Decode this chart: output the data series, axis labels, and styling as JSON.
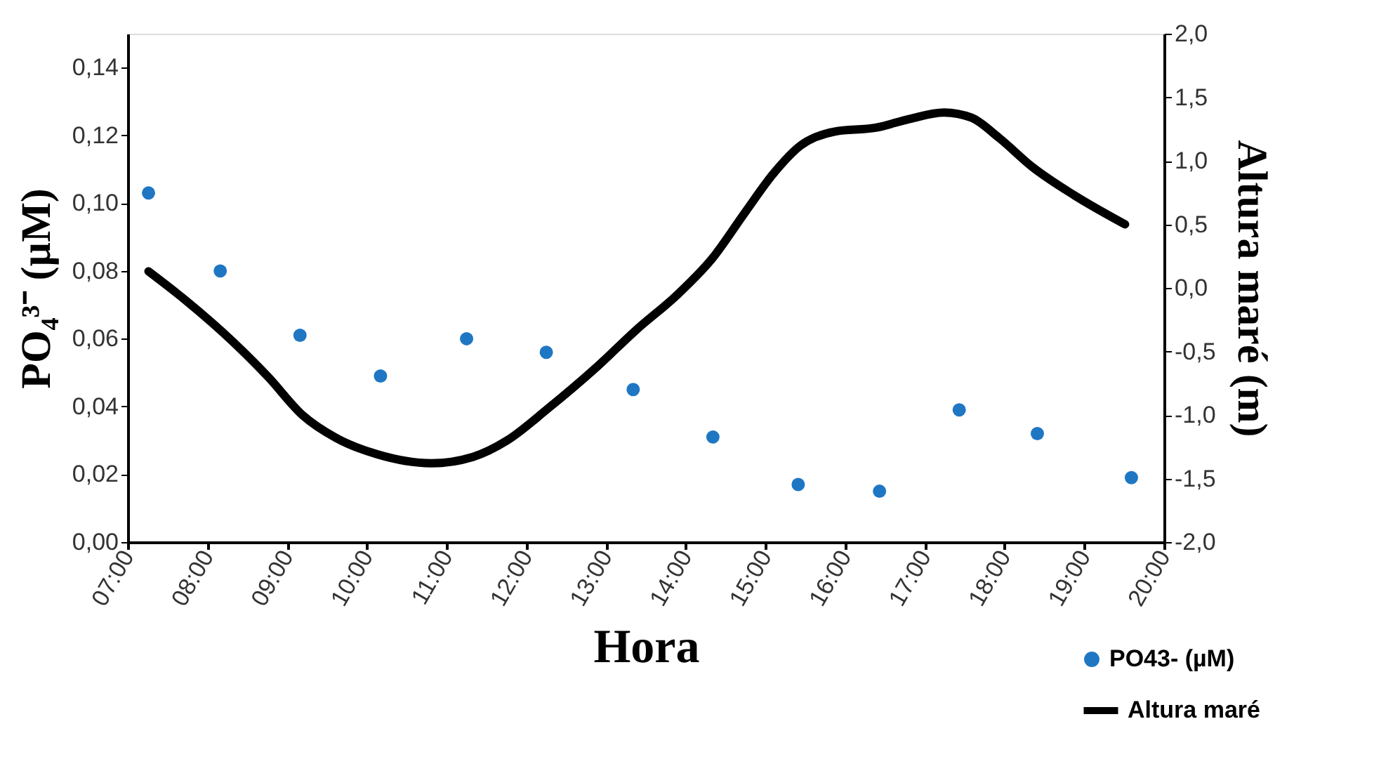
{
  "chart_data": {
    "type": "scatter",
    "xlabel": "Hora",
    "ylabel": "PO₄³⁻ (µM)",
    "y2label": "Altura maré (m)",
    "xlim": [
      7,
      20
    ],
    "xticks": [
      {
        "value": 7,
        "label": "07:00"
      },
      {
        "value": 8,
        "label": "08:00"
      },
      {
        "value": 9,
        "label": "09:00"
      },
      {
        "value": 10,
        "label": "10:00"
      },
      {
        "value": 11,
        "label": "11:00"
      },
      {
        "value": 12,
        "label": "12:00"
      },
      {
        "value": 13,
        "label": "13:00"
      },
      {
        "value": 14,
        "label": "14:00"
      },
      {
        "value": 15,
        "label": "15:00"
      },
      {
        "value": 16,
        "label": "16:00"
      },
      {
        "value": 17,
        "label": "17:00"
      },
      {
        "value": 18,
        "label": "18:00"
      },
      {
        "value": 19,
        "label": "19:00"
      },
      {
        "value": 20,
        "label": "20:00"
      }
    ],
    "ylim": [
      0,
      0.15
    ],
    "yticks": [
      {
        "value": 0,
        "label": "0,00"
      },
      {
        "value": 0.02,
        "label": "0,02"
      },
      {
        "value": 0.04,
        "label": "0,04"
      },
      {
        "value": 0.06,
        "label": "0,06"
      },
      {
        "value": 0.08,
        "label": "0,08"
      },
      {
        "value": 0.1,
        "label": "0,10"
      },
      {
        "value": 0.12,
        "label": "0,12"
      },
      {
        "value": 0.14,
        "label": "0,14"
      }
    ],
    "y2lim": [
      -2,
      2
    ],
    "y2ticks": [
      {
        "value": -2,
        "label": "-2,0"
      },
      {
        "value": -1.5,
        "label": "-1,5"
      },
      {
        "value": -1,
        "label": "-1,0"
      },
      {
        "value": -0.5,
        "label": "-0,5"
      },
      {
        "value": 0,
        "label": "0,0"
      },
      {
        "value": 0.5,
        "label": "0,5"
      },
      {
        "value": 1,
        "label": "1,0"
      },
      {
        "value": 1.5,
        "label": "1,5"
      },
      {
        "value": 2,
        "label": "2,0"
      }
    ],
    "grid": false,
    "legend": "bottom right",
    "series": [
      {
        "name": "PO43- (µM)",
        "marker": "circle",
        "color": "#1f77c4",
        "x": [
          7.26,
          8.16,
          9.16,
          10.17,
          11.25,
          12.25,
          13.34,
          14.34,
          15.41,
          16.43,
          17.43,
          18.41,
          19.59
        ],
        "values": [
          0.103,
          0.08,
          0.061,
          0.049,
          0.06,
          0.056,
          0.045,
          0.031,
          0.017,
          0.015,
          0.039,
          0.032,
          0.019
        ]
      },
      {
        "name": "Altura maré",
        "type": "line",
        "axis": "y2",
        "marker": "none",
        "line_style": "solid",
        "color": "#000000",
        "x": [
          7.26,
          7.73,
          8.33,
          8.76,
          9.19,
          9.61,
          10.13,
          10.81,
          11.33,
          11.76,
          12.27,
          12.87,
          13.38,
          13.9,
          14.33,
          14.75,
          15.1,
          15.44,
          15.87,
          16.38,
          16.81,
          17.24,
          17.58,
          17.93,
          18.35,
          18.87,
          19.51
        ],
        "values": [
          0.13,
          -0.1,
          -0.43,
          -0.7,
          -1.0,
          -1.18,
          -1.31,
          -1.38,
          -1.33,
          -1.2,
          -0.95,
          -0.63,
          -0.33,
          -0.05,
          0.23,
          0.6,
          0.9,
          1.12,
          1.23,
          1.26,
          1.33,
          1.38,
          1.34,
          1.18,
          0.95,
          0.73,
          0.5
        ]
      }
    ]
  }
}
